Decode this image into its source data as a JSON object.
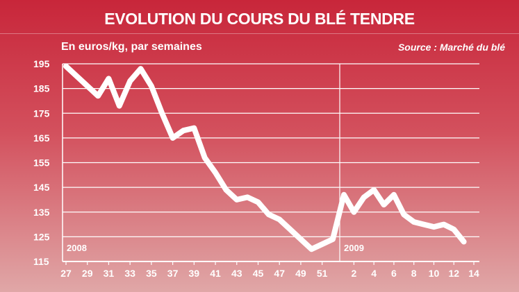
{
  "chart_data": {
    "type": "line",
    "title": "EVOLUTION DU COURS DU BLÉ TENDRE",
    "subtitle": "En euros/kg, par semaines",
    "source": "Source : Marché du blé",
    "ylim": [
      115,
      195
    ],
    "yticks": [
      115,
      125,
      135,
      145,
      155,
      165,
      175,
      185,
      195
    ],
    "x_tick_labels": [
      "27",
      "29",
      "31",
      "33",
      "35",
      "37",
      "39",
      "41",
      "43",
      "45",
      "47",
      "49",
      "51",
      "2",
      "4",
      "6",
      "8",
      "10",
      "12",
      "14"
    ],
    "year_labels": [
      "2008",
      "2009"
    ],
    "grid": true,
    "series": [
      {
        "values": [
          {
            "year": 2008,
            "week": 27,
            "y": 194
          },
          {
            "year": 2008,
            "week": 28,
            "y": 190
          },
          {
            "year": 2008,
            "week": 30,
            "y": 182
          },
          {
            "year": 2008,
            "week": 31,
            "y": 189
          },
          {
            "year": 2008,
            "week": 32,
            "y": 178
          },
          {
            "year": 2008,
            "week": 33,
            "y": 188
          },
          {
            "year": 2008,
            "week": 34,
            "y": 193
          },
          {
            "year": 2008,
            "week": 35,
            "y": 186
          },
          {
            "year": 2008,
            "week": 36,
            "y": 175
          },
          {
            "year": 2008,
            "week": 37,
            "y": 165
          },
          {
            "year": 2008,
            "week": 38,
            "y": 168
          },
          {
            "year": 2008,
            "week": 39,
            "y": 169
          },
          {
            "year": 2008,
            "week": 40,
            "y": 157
          },
          {
            "year": 2008,
            "week": 41,
            "y": 151
          },
          {
            "year": 2008,
            "week": 42,
            "y": 144
          },
          {
            "year": 2008,
            "week": 43,
            "y": 140
          },
          {
            "year": 2008,
            "week": 44,
            "y": 141
          },
          {
            "year": 2008,
            "week": 45,
            "y": 139
          },
          {
            "year": 2008,
            "week": 46,
            "y": 134
          },
          {
            "year": 2008,
            "week": 47,
            "y": 132
          },
          {
            "year": 2008,
            "week": 48,
            "y": 128
          },
          {
            "year": 2008,
            "week": 49,
            "y": 124
          },
          {
            "year": 2008,
            "week": 50,
            "y": 120
          },
          {
            "year": 2008,
            "week": 51,
            "y": 122
          },
          {
            "year": 2008,
            "week": 52,
            "y": 124
          },
          {
            "year": 2009,
            "week": 1,
            "y": 142
          },
          {
            "year": 2009,
            "week": 2,
            "y": 135
          },
          {
            "year": 2009,
            "week": 3,
            "y": 141
          },
          {
            "year": 2009,
            "week": 4,
            "y": 144
          },
          {
            "year": 2009,
            "week": 5,
            "y": 138
          },
          {
            "year": 2009,
            "week": 6,
            "y": 142
          },
          {
            "year": 2009,
            "week": 7,
            "y": 134
          },
          {
            "year": 2009,
            "week": 8,
            "y": 131
          },
          {
            "year": 2009,
            "week": 9,
            "y": 130
          },
          {
            "year": 2009,
            "week": 10,
            "y": 129
          },
          {
            "year": 2009,
            "week": 11,
            "y": 130
          },
          {
            "year": 2009,
            "week": 12,
            "y": 128
          },
          {
            "year": 2009,
            "week": 13,
            "y": 123
          }
        ]
      }
    ]
  },
  "colors": {
    "background_top": "#c8263a",
    "background_bottom": "#e0a7a7",
    "line": "#ffffff",
    "grid": "#ffffff"
  }
}
